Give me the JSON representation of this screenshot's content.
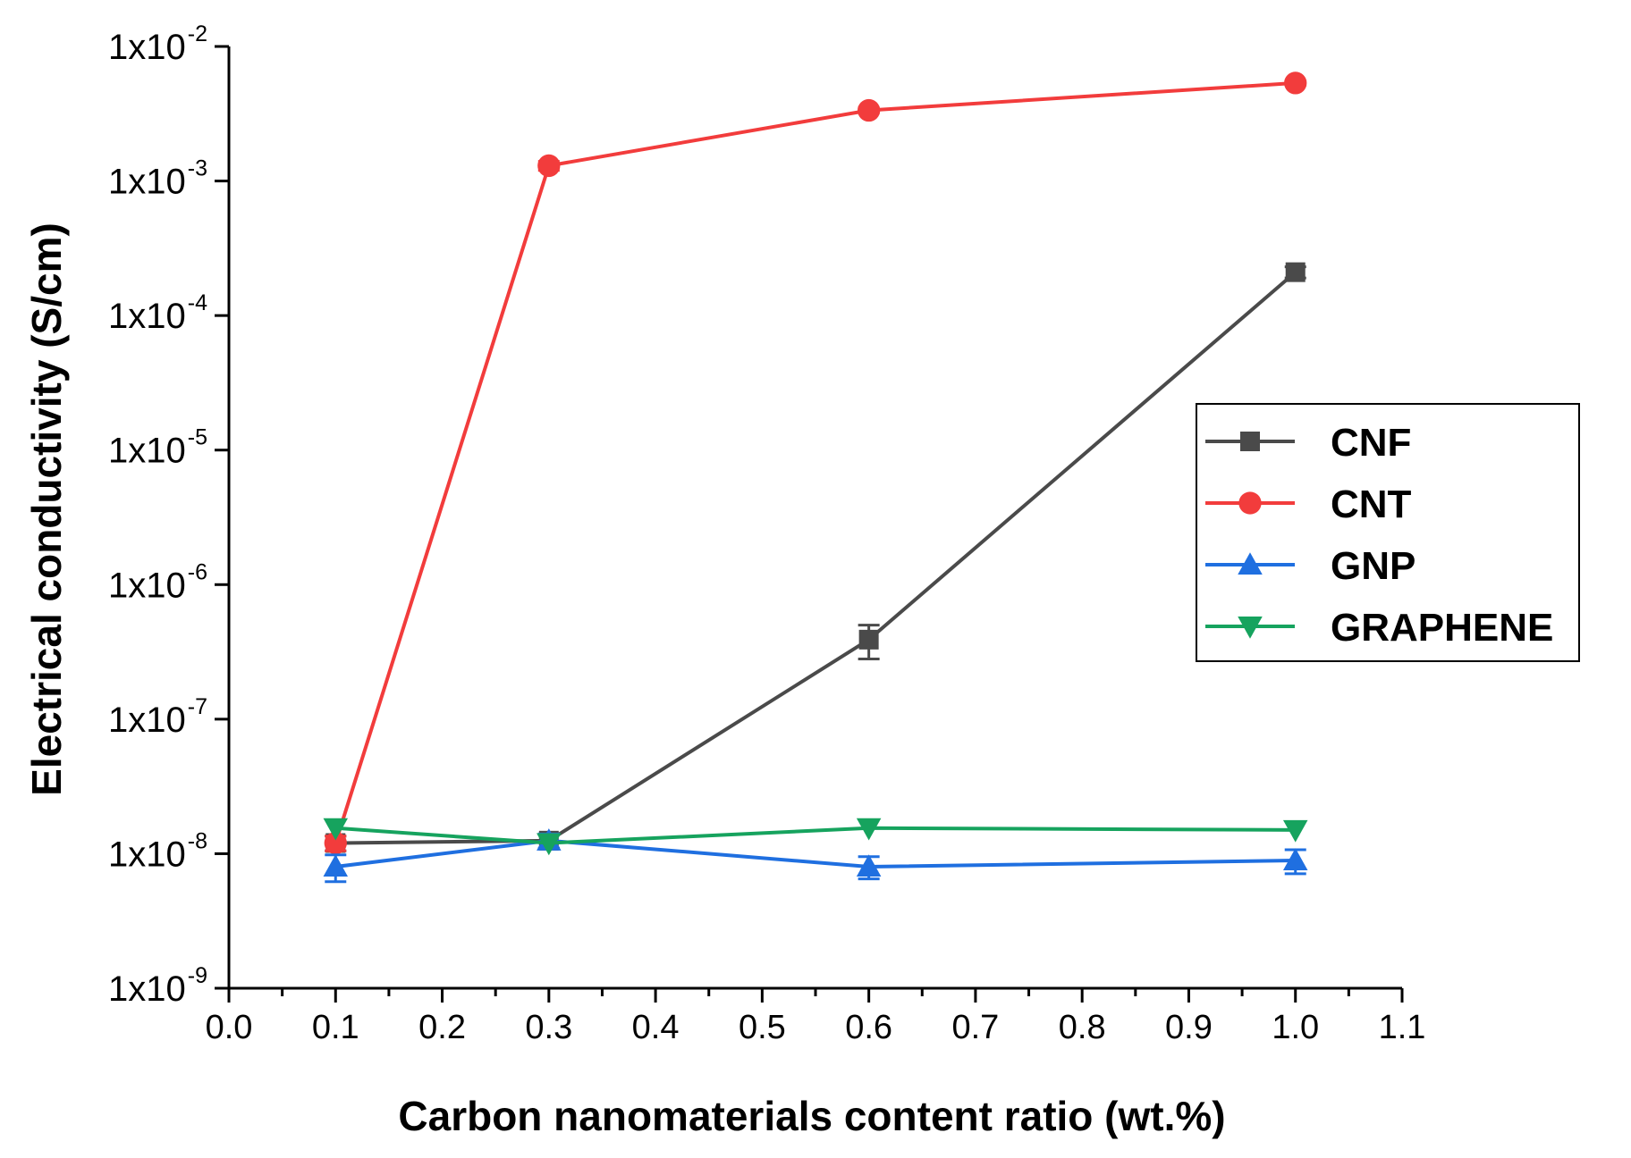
{
  "chart_data": {
    "type": "line",
    "title": "",
    "xlabel": "Carbon nanomaterials content ratio (wt.%)",
    "ylabel": "Electrical conductivity (S/cm)",
    "xlim": [
      0.0,
      1.1
    ],
    "ylim": [
      1e-09,
      0.01
    ],
    "yscale": "log",
    "grid": false,
    "legend_position": "right",
    "x_ticks": [
      "0.0",
      "0.1",
      "0.2",
      "0.3",
      "0.4",
      "0.5",
      "0.6",
      "0.7",
      "0.8",
      "0.9",
      "1.0",
      "1.1"
    ],
    "y_ticks": [
      {
        "base": "1x10",
        "exp": "-2"
      },
      {
        "base": "1x10",
        "exp": "-3"
      },
      {
        "base": "1x10",
        "exp": "-4"
      },
      {
        "base": "1x10",
        "exp": "-5"
      },
      {
        "base": "1x10",
        "exp": "-6"
      },
      {
        "base": "1x10",
        "exp": "-7"
      },
      {
        "base": "1x10",
        "exp": "-8"
      },
      {
        "base": "1x10",
        "exp": "-9"
      }
    ],
    "x": [
      0.1,
      0.3,
      0.6,
      1.0
    ],
    "series": [
      {
        "name": "CNF",
        "color": "#4a4a4a",
        "marker": "square",
        "values": [
          1.2e-08,
          1.25e-08,
          3.9e-07,
          0.00021
        ],
        "errors": [
          1.5e-09,
          1.5e-09,
          1.1e-07,
          2e-05
        ]
      },
      {
        "name": "CNT",
        "color": "#f23c3c",
        "marker": "circle",
        "values": [
          1.2e-08,
          0.0013,
          0.00335,
          0.00535
        ],
        "errors": [
          1.5e-09,
          0.0001,
          0.00015,
          0.0002
        ]
      },
      {
        "name": "GNP",
        "color": "#1f6fe0",
        "marker": "triangle-up",
        "values": [
          8e-09,
          1.25e-08,
          8e-09,
          8.9e-09
        ],
        "errors": [
          1.8e-09,
          1.5e-09,
          1.5e-09,
          1.8e-09
        ]
      },
      {
        "name": "GRAPHENE",
        "color": "#16a35e",
        "marker": "triangle-down",
        "values": [
          1.55e-08,
          1.2e-08,
          1.55e-08,
          1.5e-08
        ],
        "errors": [
          0,
          0,
          0,
          0
        ]
      }
    ]
  }
}
